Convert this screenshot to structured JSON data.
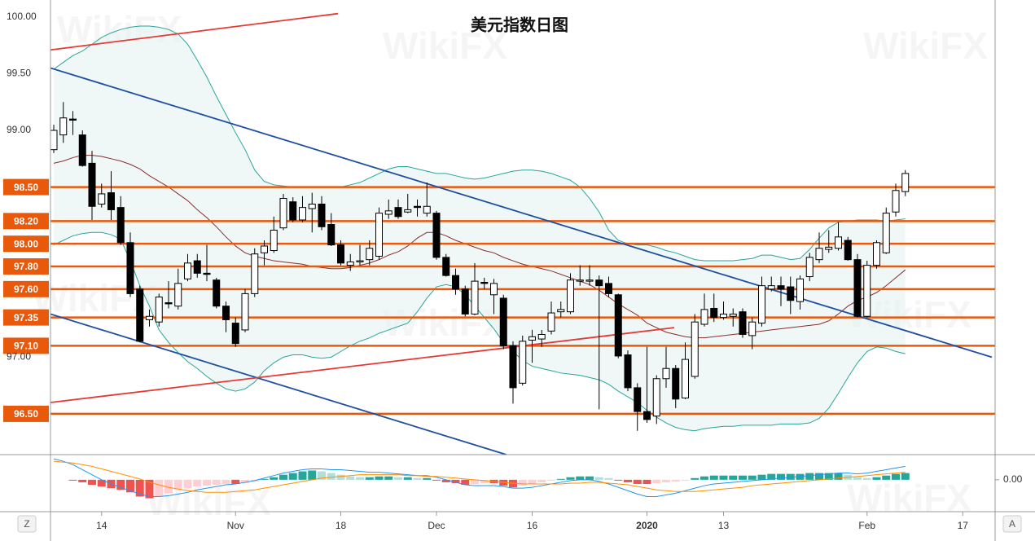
{
  "watermark": "WikiFX",
  "scale_buttons": [
    "Z",
    "A"
  ],
  "chart_data": [
    {
      "type": "candlestick",
      "title": "美元指数日图",
      "categories": [
        null,
        null,
        null,
        null,
        null,
        "14",
        null,
        null,
        null,
        null,
        null,
        null,
        null,
        null,
        null,
        null,
        null,
        null,
        null,
        "Nov",
        null,
        null,
        null,
        null,
        null,
        null,
        null,
        null,
        null,
        null,
        "18",
        null,
        null,
        null,
        null,
        null,
        null,
        null,
        null,
        null,
        "Dec",
        null,
        null,
        null,
        null,
        null,
        null,
        null,
        null,
        null,
        "16",
        null,
        null,
        null,
        null,
        null,
        null,
        null,
        null,
        null,
        null,
        null,
        "2020",
        null,
        null,
        null,
        null,
        null,
        null,
        null,
        "13",
        null,
        null,
        null,
        null,
        null,
        null,
        null,
        null,
        null,
        null,
        null,
        null,
        null,
        null,
        "Feb",
        null,
        null,
        null,
        null,
        null,
        null,
        null,
        null,
        null,
        "17",
        null,
        null,
        null
      ],
      "open": [
        98.83,
        98.96,
        99.1,
        98.96,
        98.71,
        98.35,
        98.45,
        98.32,
        98.01,
        97.6,
        97.33,
        97.31,
        97.48,
        97.45,
        97.69,
        97.85,
        97.74,
        97.68,
        97.45,
        97.3,
        97.24,
        97.56,
        97.92,
        97.94,
        98.14,
        98.37,
        98.21,
        98.31,
        98.35,
        98.17,
        97.99,
        97.81,
        97.84,
        97.86,
        97.89,
        98.26,
        98.32,
        98.28,
        98.33,
        98.27,
        98.27,
        97.88,
        97.72,
        97.6,
        97.38,
        97.66,
        97.55,
        97.52,
        97.1,
        96.77,
        97.15,
        97.16,
        97.23,
        97.4,
        97.4,
        97.67,
        97.67,
        97.68,
        97.65,
        97.55,
        97.02,
        96.73,
        96.52,
        96.48,
        96.81,
        96.9,
        96.64,
        96.83,
        97.29,
        97.43,
        97.35,
        97.36,
        97.4,
        97.19,
        97.3,
        97.6,
        97.63,
        97.62,
        97.49,
        97.71,
        97.86,
        97.95,
        97.96,
        98.03,
        97.86,
        97.36,
        97.81,
        97.92,
        98.28,
        98.46,
        null,
        null,
        null,
        null,
        null,
        null,
        null,
        null,
        null
      ],
      "high": [
        99.05,
        99.25,
        99.17,
        99.0,
        98.82,
        98.53,
        98.64,
        98.42,
        98.1,
        97.63,
        97.42,
        97.56,
        97.67,
        97.78,
        97.91,
        97.91,
        97.99,
        97.7,
        97.49,
        97.35,
        97.6,
        97.96,
        98.03,
        98.24,
        98.44,
        98.41,
        98.42,
        98.45,
        98.42,
        98.27,
        98.03,
        97.91,
        97.99,
        98.03,
        98.32,
        98.39,
        98.39,
        98.44,
        98.39,
        98.54,
        98.29,
        97.91,
        97.78,
        97.63,
        97.83,
        97.7,
        97.69,
        97.55,
        97.14,
        97.19,
        97.24,
        97.24,
        97.49,
        97.49,
        97.74,
        97.81,
        97.81,
        97.72,
        97.71,
        97.56,
        97.06,
        96.77,
        97.09,
        96.84,
        97.09,
        96.93,
        97.13,
        97.38,
        97.56,
        97.56,
        97.49,
        97.43,
        97.43,
        97.35,
        97.71,
        97.71,
        97.71,
        97.71,
        97.72,
        97.92,
        98.1,
        98.12,
        98.19,
        98.06,
        97.91,
        97.85,
        98.03,
        98.32,
        98.53,
        98.65,
        null,
        null,
        null,
        null,
        null,
        null,
        null,
        null,
        null
      ],
      "low": [
        98.8,
        98.89,
        98.96,
        98.68,
        98.21,
        98.32,
        98.21,
        97.99,
        97.53,
        97.13,
        97.27,
        97.27,
        97.43,
        97.42,
        97.67,
        97.7,
        97.67,
        97.43,
        97.22,
        97.09,
        97.22,
        97.53,
        97.81,
        97.92,
        98.12,
        98.19,
        98.19,
        98.1,
        98.12,
        97.98,
        97.81,
        97.76,
        97.81,
        97.81,
        97.86,
        98.22,
        98.22,
        98.27,
        98.24,
        98.24,
        97.86,
        97.71,
        97.55,
        97.36,
        97.37,
        97.6,
        97.38,
        97.07,
        96.59,
        96.75,
        96.95,
        97.09,
        97.2,
        97.35,
        97.38,
        97.63,
        97.63,
        96.54,
        97.53,
        96.99,
        96.7,
        96.35,
        96.42,
        96.41,
        96.73,
        96.55,
        96.63,
        96.81,
        97.27,
        97.31,
        97.33,
        97.27,
        97.17,
        97.07,
        97.27,
        97.58,
        97.45,
        97.38,
        97.42,
        97.67,
        97.83,
        97.92,
        97.94,
        97.85,
        97.35,
        97.35,
        97.78,
        97.91,
        98.24,
        98.42,
        null,
        null,
        null,
        null,
        null,
        null,
        null,
        null,
        null
      ],
      "close": [
        99.0,
        99.11,
        99.09,
        98.69,
        98.33,
        98.44,
        98.3,
        98.01,
        97.56,
        97.14,
        97.36,
        97.53,
        97.47,
        97.65,
        97.83,
        97.74,
        97.73,
        97.45,
        97.33,
        97.12,
        97.56,
        97.91,
        97.98,
        98.12,
        98.4,
        98.21,
        98.32,
        98.35,
        98.15,
        97.99,
        97.83,
        97.84,
        97.85,
        97.96,
        98.27,
        98.29,
        98.24,
        98.3,
        98.32,
        98.33,
        97.88,
        97.72,
        97.6,
        97.38,
        97.67,
        97.65,
        97.65,
        97.1,
        96.73,
        97.14,
        97.18,
        97.2,
        97.39,
        97.42,
        97.68,
        97.68,
        97.68,
        97.63,
        97.56,
        97.01,
        96.73,
        96.52,
        96.45,
        96.81,
        96.9,
        96.63,
        96.98,
        97.31,
        97.42,
        97.35,
        97.38,
        97.38,
        97.2,
        97.31,
        97.63,
        97.63,
        97.6,
        97.5,
        97.69,
        97.88,
        97.96,
        97.97,
        98.06,
        97.86,
        97.36,
        97.81,
        98.01,
        98.27,
        98.47,
        98.62,
        null,
        null,
        null,
        null,
        null,
        null,
        null,
        null,
        null
      ],
      "up_color": "#ffffff",
      "down_color": "#000000",
      "outline_color": "#000000",
      "bands": {
        "color": "#26a69a",
        "middle_color": "#8b2c2c",
        "fill": "#e6f4f2",
        "upper": [
          99.54,
          99.6,
          99.66,
          99.7,
          99.76,
          99.82,
          99.86,
          99.89,
          99.91,
          99.92,
          99.92,
          99.91,
          99.89,
          99.85,
          99.76,
          99.62,
          99.47,
          99.3,
          99.14,
          98.98,
          98.83,
          98.65,
          98.55,
          98.52,
          98.51,
          98.5,
          98.5,
          98.5,
          98.5,
          98.5,
          98.5,
          98.52,
          98.54,
          98.58,
          98.62,
          98.66,
          98.68,
          98.68,
          98.66,
          98.64,
          98.62,
          98.62,
          98.6,
          98.58,
          98.57,
          98.58,
          98.6,
          98.62,
          98.64,
          98.65,
          98.65,
          98.64,
          98.62,
          98.59,
          98.56,
          98.5,
          98.4,
          98.28,
          98.12,
          98.03,
          98.0,
          97.99,
          97.99,
          97.97,
          97.94,
          97.92,
          97.89,
          97.86,
          97.85,
          97.85,
          97.85,
          97.85,
          97.86,
          97.87,
          97.9,
          97.9,
          97.88,
          97.86,
          97.87,
          97.95,
          98.05,
          98.14,
          98.19,
          98.2,
          98.21,
          98.21,
          98.21,
          98.2,
          98.21,
          98.22,
          null,
          null,
          null,
          null,
          null,
          null,
          null,
          null,
          null
        ],
        "middle": [
          98.71,
          98.73,
          98.76,
          98.78,
          98.78,
          98.77,
          98.75,
          98.73,
          98.7,
          98.66,
          98.6,
          98.55,
          98.5,
          98.44,
          98.38,
          98.3,
          98.23,
          98.15,
          98.06,
          97.98,
          97.92,
          97.89,
          97.87,
          97.85,
          97.84,
          97.83,
          97.82,
          97.8,
          97.79,
          97.78,
          97.78,
          97.79,
          97.81,
          97.83,
          97.86,
          97.9,
          97.93,
          97.98,
          98.05,
          98.1,
          98.1,
          98.07,
          98.03,
          98.0,
          97.97,
          97.94,
          97.92,
          97.88,
          97.85,
          97.82,
          97.8,
          97.78,
          97.76,
          97.73,
          97.7,
          97.67,
          97.64,
          97.59,
          97.53,
          97.47,
          97.42,
          97.37,
          97.3,
          97.26,
          97.22,
          97.2,
          97.18,
          97.17,
          97.17,
          97.18,
          97.19,
          97.2,
          97.21,
          97.22,
          97.23,
          97.24,
          97.25,
          97.26,
          97.27,
          97.28,
          97.29,
          97.32,
          97.38,
          97.45,
          97.5,
          97.53,
          97.57,
          97.63,
          97.7,
          97.77,
          null,
          null,
          null,
          null,
          null,
          null,
          null,
          null,
          null
        ],
        "lower": [
          97.99,
          98.03,
          98.07,
          98.09,
          98.1,
          98.1,
          98.08,
          98.04,
          97.85,
          97.63,
          97.45,
          97.24,
          97.13,
          97.04,
          96.96,
          96.9,
          96.83,
          96.77,
          96.72,
          96.7,
          96.72,
          96.78,
          96.88,
          96.95,
          97.0,
          97.02,
          97.02,
          97.0,
          96.99,
          97.0,
          97.05,
          97.1,
          97.14,
          97.17,
          97.21,
          97.24,
          97.27,
          97.3,
          97.4,
          97.52,
          97.62,
          97.64,
          97.62,
          97.55,
          97.45,
          97.35,
          97.25,
          97.13,
          97.05,
          96.97,
          96.92,
          96.9,
          96.88,
          96.86,
          96.85,
          96.84,
          96.82,
          96.8,
          96.76,
          96.7,
          96.65,
          96.6,
          96.53,
          96.47,
          96.42,
          96.38,
          96.36,
          96.35,
          96.37,
          96.38,
          96.39,
          96.39,
          96.4,
          96.4,
          96.4,
          96.4,
          96.41,
          96.41,
          96.41,
          96.42,
          96.46,
          96.55,
          96.68,
          96.82,
          96.95,
          97.05,
          97.09,
          97.08,
          97.05,
          97.03,
          null,
          null,
          null,
          null,
          null,
          null,
          null,
          null,
          null
        ]
      },
      "level_color": "#e8590c",
      "levels": [
        {
          "value": 98.5,
          "label": "98.50"
        },
        {
          "value": 98.2,
          "label": "98.20"
        },
        {
          "value": 98,
          "label": "98.00"
        },
        {
          "value": 97.8,
          "label": "97.80"
        },
        {
          "value": 97.6,
          "label": "97.60"
        },
        {
          "value": 97.35,
          "label": "97.35"
        },
        {
          "value": 97.1,
          "label": "97.10"
        },
        {
          "value": 96.5,
          "label": "96.50"
        }
      ],
      "trendlines": [
        {
          "color": "#e53935",
          "x": [
            -0.34,
            29.7
          ],
          "y": [
            99.71,
            100.03
          ]
        },
        {
          "color": "#1e4fa0",
          "x": [
            -0.34,
            98.04
          ],
          "y": [
            99.55,
            97.0
          ]
        },
        {
          "color": "#1e4fa0",
          "x": [
            -0.34,
            47.3
          ],
          "y": [
            97.38,
            96.14
          ]
        },
        {
          "color": "#e53935",
          "x": [
            -0.34,
            64.85
          ],
          "y": [
            96.6,
            97.26
          ]
        }
      ],
      "ylim": [
        96.14,
        100.15
      ],
      "yticks": [
        {
          "value": 97,
          "label": "97.00"
        },
        {
          "value": 99,
          "label": "99.00"
        },
        {
          "value": 99.5,
          "label": "99.50"
        },
        {
          "value": 100,
          "label": "100.00"
        }
      ]
    },
    {
      "type": "macd",
      "histogram": [
        0,
        0,
        -0.01,
        -0.03,
        -0.06,
        -0.08,
        -0.1,
        -0.12,
        -0.15,
        -0.2,
        -0.22,
        -0.2,
        -0.16,
        -0.12,
        -0.1,
        -0.08,
        -0.07,
        -0.06,
        -0.05,
        -0.05,
        -0.04,
        -0.02,
        0.01,
        0.03,
        0.06,
        0.08,
        0.1,
        0.11,
        0.1,
        0.08,
        0.06,
        0.04,
        0.03,
        0.03,
        0.04,
        0.04,
        0.03,
        0.03,
        0.02,
        0.02,
        -0.01,
        -0.03,
        -0.04,
        -0.06,
        -0.05,
        -0.04,
        -0.04,
        -0.07,
        -0.09,
        -0.07,
        -0.05,
        -0.03,
        -0.01,
        0.01,
        0.03,
        0.04,
        0.04,
        0.03,
        0.02,
        -0.01,
        -0.03,
        -0.05,
        -0.05,
        -0.04,
        -0.03,
        -0.02,
        -0.01,
        0.02,
        0.04,
        0.05,
        0.05,
        0.05,
        0.05,
        0.05,
        0.06,
        0.07,
        0.07,
        0.07,
        0.07,
        0.08,
        0.08,
        0.08,
        0.08,
        0.06,
        0.03,
        0.02,
        0.03,
        0.05,
        0.07,
        0.08,
        null,
        null,
        null,
        null,
        null,
        null,
        null,
        null,
        null
      ],
      "macd": [
        0.25,
        0.22,
        0.18,
        0.12,
        0.06,
        0,
        -0.05,
        -0.09,
        -0.13,
        -0.17,
        -0.2,
        -0.2,
        -0.19,
        -0.17,
        -0.15,
        -0.12,
        -0.1,
        -0.08,
        -0.06,
        -0.05,
        -0.03,
        -0.01,
        0.02,
        0.05,
        0.08,
        0.1,
        0.12,
        0.13,
        0.13,
        0.12,
        0.12,
        0.11,
        0.1,
        0.09,
        0.09,
        0.08,
        0.07,
        0.06,
        0.05,
        0.05,
        0.03,
        0,
        -0.03,
        -0.06,
        -0.07,
        -0.07,
        -0.07,
        -0.08,
        -0.1,
        -0.1,
        -0.09,
        -0.07,
        -0.05,
        -0.03,
        -0.01,
        0,
        0,
        -0.02,
        -0.05,
        -0.09,
        -0.13,
        -0.17,
        -0.2,
        -0.2,
        -0.18,
        -0.16,
        -0.13,
        -0.1,
        -0.07,
        -0.05,
        -0.04,
        -0.03,
        -0.02,
        -0.01,
        0,
        0.01,
        0.02,
        0.03,
        0.04,
        0.05,
        0.06,
        0.07,
        0.08,
        0.08,
        0.07,
        0.08,
        0.1,
        0.12,
        0.14,
        0.16,
        null,
        null,
        null,
        null,
        null,
        null,
        null,
        null,
        null
      ],
      "signal": [
        0.22,
        0.21,
        0.2,
        0.18,
        0.16,
        0.13,
        0.1,
        0.07,
        0.04,
        0.01,
        -0.03,
        -0.06,
        -0.09,
        -0.11,
        -0.13,
        -0.14,
        -0.15,
        -0.15,
        -0.15,
        -0.14,
        -0.13,
        -0.12,
        -0.1,
        -0.08,
        -0.06,
        -0.04,
        -0.02,
        0,
        0.02,
        0.03,
        0.04,
        0.05,
        0.06,
        0.06,
        0.06,
        0.06,
        0.06,
        0.05,
        0.05,
        0.04,
        0.04,
        0.03,
        0.02,
        0.01,
        0,
        -0.01,
        -0.02,
        -0.03,
        -0.04,
        -0.05,
        -0.05,
        -0.05,
        -0.05,
        -0.05,
        -0.04,
        -0.04,
        -0.03,
        -0.03,
        -0.04,
        -0.05,
        -0.06,
        -0.08,
        -0.1,
        -0.12,
        -0.13,
        -0.14,
        -0.14,
        -0.14,
        -0.13,
        -0.12,
        -0.11,
        -0.1,
        -0.09,
        -0.07,
        -0.06,
        -0.05,
        -0.04,
        -0.03,
        -0.02,
        -0.01,
        0,
        0.01,
        0.02,
        0.03,
        0.04,
        0.05,
        0.06,
        0.07,
        0.08,
        0.09,
        null,
        null,
        null,
        null,
        null,
        null,
        null,
        null,
        null
      ],
      "macd_color": "#2196f3",
      "signal_color": "#ff8f00",
      "hist_colors": {
        "up_strong": "#26a69a",
        "up_weak": "#b2dfdb",
        "down_strong": "#ef5350",
        "down_weak": "#ffcdd2"
      },
      "ylim": [
        -0.38,
        0.28
      ],
      "yticks": [
        {
          "value": 0,
          "label": "0.00"
        }
      ]
    }
  ]
}
